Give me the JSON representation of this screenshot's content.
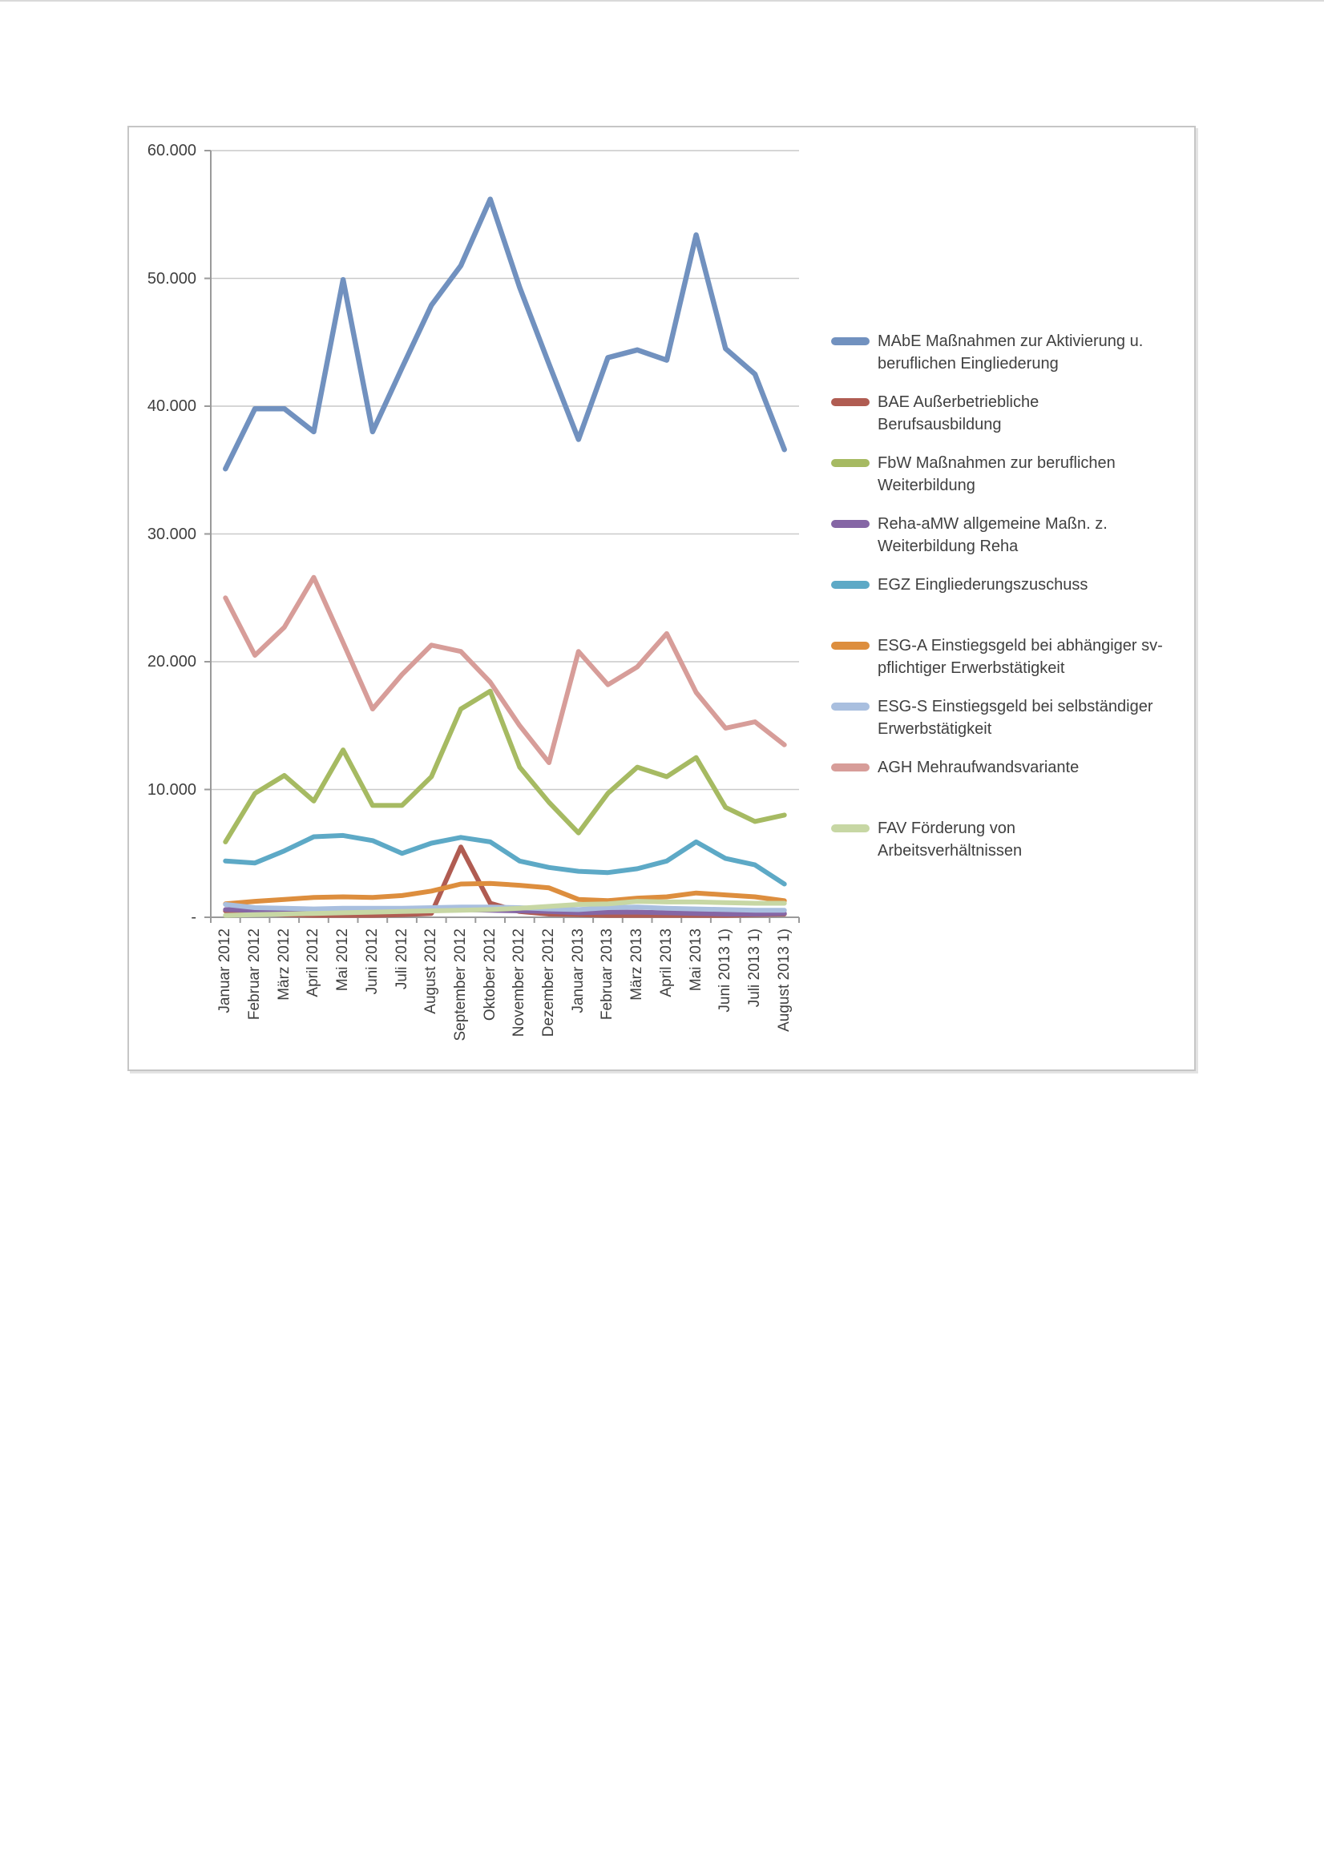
{
  "chart_data": {
    "type": "line",
    "title": "",
    "xlabel": "",
    "ylabel": "",
    "grid": true,
    "legend_position": "right",
    "ylim": [
      0,
      60000
    ],
    "y_ticks": [
      {
        "label": "60.000",
        "value": 60000
      },
      {
        "label": "50.000",
        "value": 50000
      },
      {
        "label": "40.000",
        "value": 40000
      },
      {
        "label": "30.000",
        "value": 30000
      },
      {
        "label": "20.000",
        "value": 20000
      },
      {
        "label": "10.000",
        "value": 10000
      },
      {
        "label": "-",
        "value": 0
      }
    ],
    "categories": [
      "Januar 2012",
      "Februar 2012",
      "März 2012",
      "April 2012",
      "Mai 2012",
      "Juni 2012",
      "Juli 2012",
      "August 2012",
      "September 2012",
      "Oktober 2012",
      "November 2012",
      "Dezember 2012",
      "Januar 2013",
      "Februar 2013",
      "März 2013",
      "April 2013",
      "Mai 2013",
      "Juni 2013 1)",
      "Juli 2013 1)",
      "August 2013 1)"
    ],
    "series": [
      {
        "key": "mabe",
        "name": "MAbE Maßnahmen zur Aktivierung u.\nberuflichen Eingliederung",
        "color": "#7191bf",
        "width": 6.5,
        "values": [
          35100,
          39800,
          39800,
          38000,
          49900,
          38000,
          43000,
          47900,
          51000,
          56200,
          49300,
          43300,
          37400,
          43800,
          44400,
          43600,
          53400,
          44500,
          42500,
          36600
        ]
      },
      {
        "key": "bae",
        "name": "BAE Außerbetriebliche\nBerufsausbildung",
        "color": "#b05c52",
        "width": 6,
        "values": [
          500,
          300,
          200,
          150,
          150,
          150,
          200,
          300,
          5500,
          1100,
          450,
          250,
          200,
          150,
          150,
          150,
          150,
          150,
          200,
          250
        ]
      },
      {
        "key": "fbw",
        "name": "FbW Maßnahmen zur beruflichen\nWeiterbildung",
        "color": "#a6ba62",
        "width": 6,
        "values": [
          5900,
          9700,
          11100,
          9100,
          13100,
          8750,
          8750,
          11000,
          16300,
          17700,
          11750,
          9000,
          6600,
          9700,
          11750,
          11000,
          12500,
          8600,
          7500,
          8000
        ]
      },
      {
        "key": "reha-amw",
        "name": "Reha-aMW allgemeine Maßn. z.\nWeiterbildung Reha",
        "color": "#8566a5",
        "width": 6,
        "values": [
          600,
          550,
          500,
          500,
          500,
          500,
          500,
          550,
          600,
          550,
          500,
          450,
          350,
          400,
          400,
          350,
          300,
          250,
          250,
          300
        ]
      },
      {
        "key": "egz",
        "name": "EGZ Eingliederungszuschuss",
        "color": "#5da9c6",
        "width": 6,
        "values": [
          4400,
          4250,
          5200,
          6300,
          6400,
          6000,
          5000,
          5800,
          6250,
          5900,
          4400,
          3900,
          3600,
          3500,
          3800,
          4400,
          5900,
          4600,
          4100,
          2600
        ]
      },
      {
        "key": "esg-a",
        "name": "ESG-A Einstiegsgeld bei abhängiger sv-\npflichtiger Erwerbstätigkeit",
        "color": "#dd8e3e",
        "width": 6,
        "values": [
          1050,
          1250,
          1400,
          1550,
          1600,
          1550,
          1700,
          2050,
          2600,
          2650,
          2500,
          2300,
          1400,
          1300,
          1500,
          1600,
          1900,
          1750,
          1600,
          1300
        ]
      },
      {
        "key": "esg-s",
        "name": "ESG-S Einstiegsgeld bei selbständiger\nErwerbstätigkeit",
        "color": "#a9bfdf",
        "width": 6,
        "values": [
          1000,
          750,
          700,
          650,
          700,
          700,
          700,
          750,
          800,
          800,
          750,
          650,
          600,
          750,
          800,
          700,
          650,
          600,
          550,
          550
        ]
      },
      {
        "key": "agh",
        "name": "AGH Mehraufwandsvariante",
        "color": "#d79d99",
        "width": 6,
        "values": [
          25000,
          20500,
          22700,
          26600,
          21500,
          16300,
          19000,
          21300,
          20800,
          18400,
          15000,
          12100,
          20800,
          18200,
          19600,
          22200,
          17600,
          14800,
          15300,
          13500
        ]
      },
      {
        "key": "fav",
        "name": "FAV Förderung von\nArbeitsverhältnissen",
        "color": "#c7d7a4",
        "width": 6,
        "values": [
          150,
          200,
          250,
          300,
          350,
          400,
          450,
          500,
          550,
          600,
          700,
          850,
          1000,
          1050,
          1250,
          1200,
          1200,
          1150,
          1100,
          1100
        ]
      }
    ],
    "style": {
      "gridline_color": "#c9c9c9",
      "axis_color": "#9a9a9a",
      "label_color": "#3f3f3f",
      "background": "#ffffff"
    }
  }
}
